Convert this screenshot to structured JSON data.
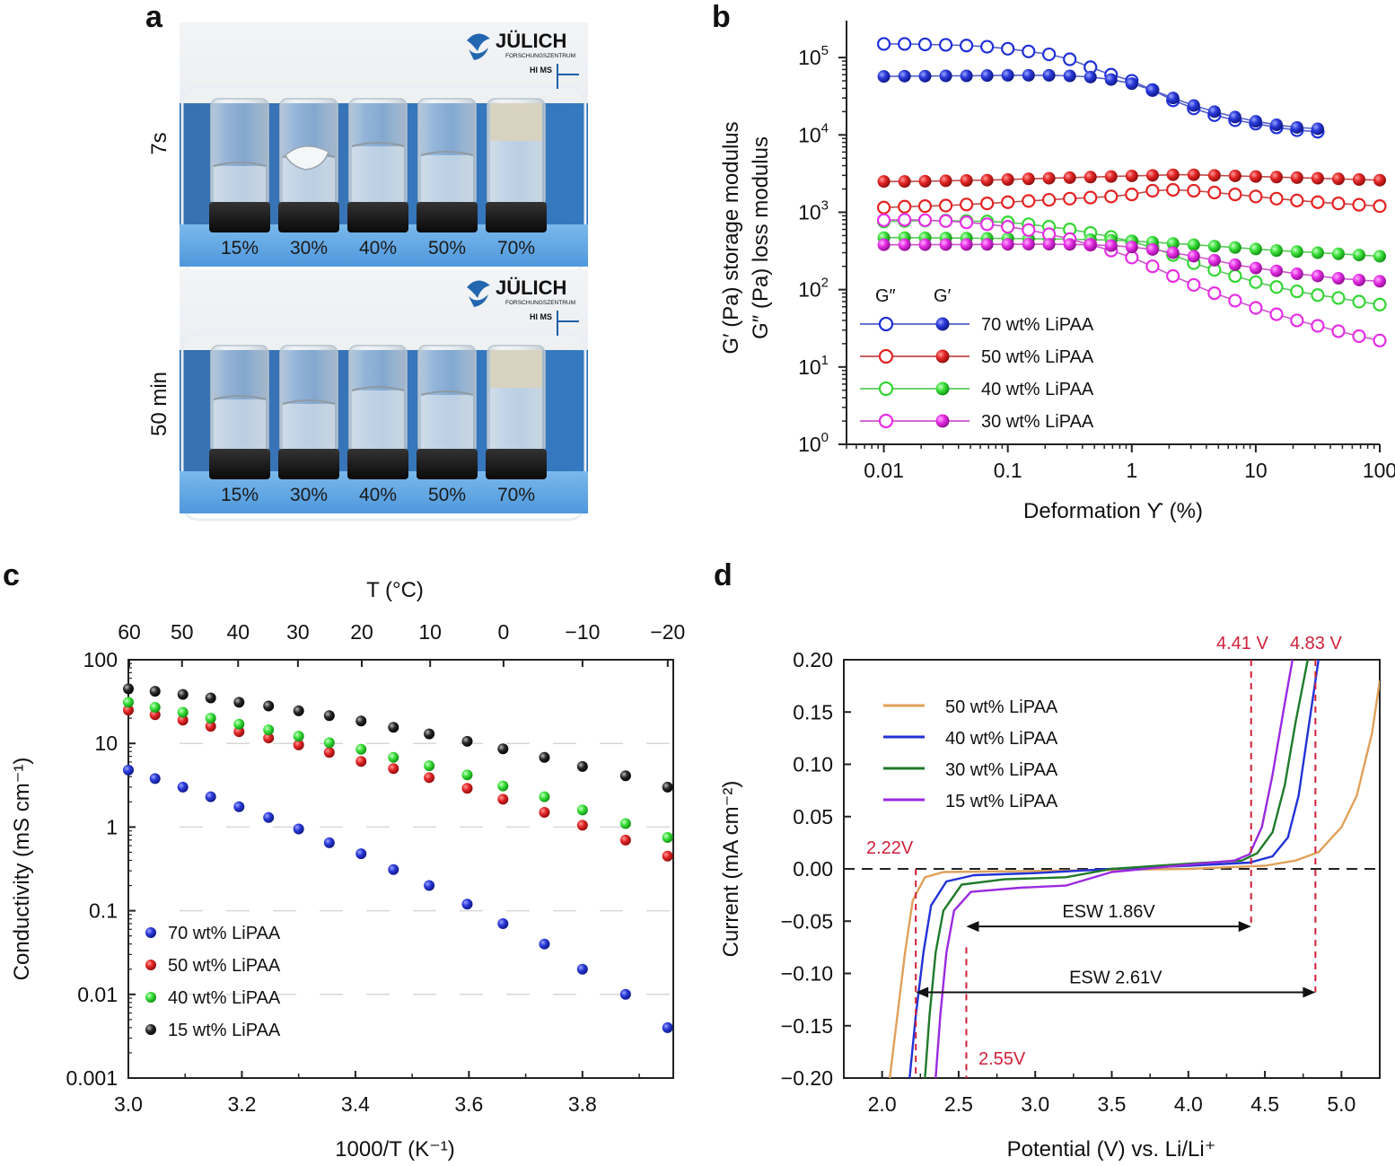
{
  "panels": {
    "a": {
      "letter": "a",
      "row_labels": [
        "7s",
        "50 min"
      ],
      "vial_labels": [
        "15%",
        "30%",
        "40%",
        "50%",
        "70%"
      ],
      "logo_text": "JÜLICH",
      "logo_subtext": "FORSCHUNGSZENTRUM",
      "badge": "HI MS"
    },
    "b": {
      "letter": "b"
    },
    "c": {
      "letter": "c"
    },
    "d": {
      "letter": "d"
    }
  },
  "chart_data": [
    {
      "panel": "b",
      "type": "scatter",
      "xscale": "log",
      "yscale": "log",
      "xlim": [
        0.005,
        100
      ],
      "ylim": [
        1,
        300000
      ],
      "xlabel": "Deformation ϒ (%)",
      "ylabel_lines": [
        "G′ (Pa) storage modulus",
        "G″ (Pa) loss modulus"
      ],
      "xticks": [
        {
          "v": 0.01,
          "label": "0.01"
        },
        {
          "v": 0.1,
          "label": "0.1"
        },
        {
          "v": 1,
          "label": "1"
        },
        {
          "v": 10,
          "label": "10"
        },
        {
          "v": 100,
          "label": "100"
        }
      ],
      "yticks": [
        {
          "exp": 0,
          "base": "10",
          "sup": "0"
        },
        {
          "exp": 1,
          "base": "10",
          "sup": "1"
        },
        {
          "exp": 2,
          "base": "10",
          "sup": "2"
        },
        {
          "exp": 3,
          "base": "10",
          "sup": "3"
        },
        {
          "exp": 4,
          "base": "10",
          "sup": "4"
        },
        {
          "exp": 5,
          "base": "10",
          "sup": "5"
        }
      ],
      "legend_headers": [
        "G″",
        "G′"
      ],
      "x": [
        0.01,
        0.0147,
        0.0215,
        0.0316,
        0.0464,
        0.0681,
        0.1,
        0.147,
        0.215,
        0.316,
        0.464,
        0.681,
        1,
        1.47,
        2.15,
        3.16,
        4.64,
        6.81,
        10,
        14.7,
        21.5,
        31.6,
        46.4,
        68.1,
        100
      ],
      "series": [
        {
          "name": "70 wt% LiPAA",
          "color": "#1e2fd9",
          "G2": [
            150000,
            150000,
            148000,
            146000,
            143000,
            138000,
            130000,
            120000,
            110000,
            95000,
            75000,
            60000,
            50000,
            38000,
            28000,
            22000,
            18000,
            15500,
            14000,
            12500,
            11500,
            11000
          ],
          "G1": [
            57000,
            57500,
            57500,
            58000,
            58000,
            58500,
            59000,
            59000,
            59000,
            58000,
            56000,
            52000,
            46000,
            38000,
            30000,
            24000,
            20000,
            17000,
            15000,
            13500,
            12500,
            12000
          ]
        },
        {
          "name": "50 wt% LiPAA",
          "color": "#e52222",
          "G2": [
            1150,
            1180,
            1200,
            1220,
            1260,
            1300,
            1350,
            1400,
            1450,
            1500,
            1550,
            1600,
            1700,
            1900,
            1950,
            1900,
            1800,
            1700,
            1600,
            1500,
            1420,
            1350,
            1300,
            1250,
            1200
          ],
          "G1": [
            2500,
            2500,
            2520,
            2550,
            2580,
            2600,
            2650,
            2700,
            2750,
            2800,
            2850,
            2900,
            2950,
            3000,
            3050,
            3050,
            3000,
            2950,
            2900,
            2850,
            2800,
            2750,
            2700,
            2650,
            2600
          ]
        },
        {
          "name": "40 wt% LiPAA",
          "color": "#33d633",
          "G2": [
            760,
            770,
            780,
            780,
            770,
            760,
            740,
            700,
            650,
            600,
            540,
            480,
            420,
            350,
            280,
            220,
            180,
            150,
            125,
            108,
            95,
            85,
            78,
            70,
            64
          ],
          "G1": [
            470,
            470,
            468,
            465,
            463,
            460,
            458,
            455,
            452,
            448,
            443,
            435,
            425,
            410,
            395,
            380,
            365,
            350,
            335,
            320,
            310,
            300,
            290,
            280,
            270
          ]
        },
        {
          "name": "30 wt% LiPAA",
          "color": "#e62ee6",
          "G2": [
            790,
            800,
            790,
            770,
            740,
            700,
            650,
            590,
            520,
            450,
            380,
            320,
            260,
            200,
            150,
            115,
            90,
            72,
            58,
            48,
            40,
            34,
            29,
            25,
            22
          ],
          "G1": [
            380,
            380,
            381,
            382,
            383,
            384,
            385,
            386,
            386,
            384,
            380,
            370,
            355,
            330,
            300,
            270,
            240,
            210,
            190,
            175,
            160,
            150,
            140,
            133,
            128
          ]
        }
      ]
    },
    {
      "panel": "c",
      "type": "scatter",
      "yscale": "log",
      "xlim": [
        3.0,
        3.96
      ],
      "ylim": [
        0.001,
        100
      ],
      "xlabel": "1000/T (K⁻¹)",
      "xlabel_top": "T (°C)",
      "ylabel": "Conductivity (mS cm⁻¹)",
      "xticks": [
        "3.0",
        "3.2",
        "3.4",
        "3.6",
        "3.8"
      ],
      "xticks_v": [
        3.0,
        3.2,
        3.4,
        3.6,
        3.8
      ],
      "yticks": [
        "100",
        "10",
        "1",
        "0.1",
        "0.01",
        "0.001"
      ],
      "yticks_v": [
        100,
        10,
        1,
        0.1,
        0.01,
        0.001
      ],
      "top_ticks": [
        "60",
        "50",
        "40",
        "30",
        "20",
        "10",
        "0",
        "−10",
        "−20"
      ],
      "top_ticks_c": [
        60,
        50,
        40,
        30,
        20,
        10,
        0,
        -10,
        -20
      ],
      "x": [
        3.0,
        3.047,
        3.096,
        3.145,
        3.195,
        3.247,
        3.3,
        3.354,
        3.41,
        3.467,
        3.53,
        3.597,
        3.66,
        3.733,
        3.8,
        3.876,
        3.95
      ],
      "series": [
        {
          "name": "70 wt% LiPAA",
          "color": "#2f36d8",
          "values": [
            4.8,
            3.8,
            3.0,
            2.3,
            1.75,
            1.3,
            0.95,
            0.65,
            0.48,
            0.31,
            0.2,
            0.12,
            0.07,
            0.04,
            0.02,
            0.01,
            0.004
          ]
        },
        {
          "name": "50 wt% LiPAA",
          "color": "#e32626",
          "values": [
            25,
            22,
            19,
            16,
            13.8,
            11.6,
            9.6,
            7.8,
            6.1,
            5.0,
            3.9,
            2.9,
            2.15,
            1.5,
            1.05,
            0.7,
            0.45
          ]
        },
        {
          "name": "40 wt% LiPAA",
          "color": "#3adf3a",
          "values": [
            31,
            27,
            23.5,
            20,
            17,
            14.5,
            12.2,
            10.2,
            8.5,
            6.8,
            5.4,
            4.2,
            3.1,
            2.3,
            1.6,
            1.1,
            0.75
          ]
        },
        {
          "name": "15 wt% LiPAA",
          "color": "#1a1a1a",
          "values": [
            45,
            42,
            38.5,
            35,
            31,
            28,
            24.5,
            21.5,
            18.5,
            15.6,
            13,
            10.6,
            8.6,
            6.8,
            5.3,
            4.1,
            3.0
          ]
        }
      ]
    },
    {
      "panel": "d",
      "type": "line",
      "xlim": [
        1.75,
        5.25
      ],
      "ylim": [
        -0.2,
        0.2
      ],
      "xlabel": "Potential (V) vs. Li/Li⁺",
      "ylabel": "Current (mA cm⁻²)",
      "xticks": [
        "2.0",
        "2.5",
        "3.0",
        "3.5",
        "4.0",
        "4.5",
        "5.0"
      ],
      "xticks_v": [
        2.0,
        2.5,
        3.0,
        3.5,
        4.0,
        4.5,
        5.0
      ],
      "yticks": [
        "0.20",
        "0.15",
        "0.10",
        "0.05",
        "0.00",
        "−0.05",
        "−0.10",
        "−0.15",
        "−0.20"
      ],
      "yticks_v": [
        0.2,
        0.15,
        0.1,
        0.05,
        0.0,
        -0.05,
        -0.1,
        -0.15,
        -0.2
      ],
      "series": [
        {
          "name": "50 wt% LiPAA",
          "color": "#e0a05a",
          "points": [
            [
              2.05,
              -0.2
            ],
            [
              2.1,
              -0.14
            ],
            [
              2.15,
              -0.08
            ],
            [
              2.2,
              -0.03
            ],
            [
              2.28,
              -0.008
            ],
            [
              2.4,
              -0.003
            ],
            [
              3.0,
              -0.002
            ],
            [
              4.0,
              0.0
            ],
            [
              4.5,
              0.003
            ],
            [
              4.7,
              0.008
            ],
            [
              4.85,
              0.016
            ],
            [
              5.0,
              0.04
            ],
            [
              5.1,
              0.07
            ],
            [
              5.2,
              0.13
            ],
            [
              5.25,
              0.18
            ]
          ]
        },
        {
          "name": "40 wt% LiPAA",
          "color": "#2232d6",
          "points": [
            [
              2.18,
              -0.2
            ],
            [
              2.22,
              -0.14
            ],
            [
              2.27,
              -0.08
            ],
            [
              2.32,
              -0.035
            ],
            [
              2.42,
              -0.012
            ],
            [
              2.6,
              -0.006
            ],
            [
              3.0,
              -0.004
            ],
            [
              3.5,
              0.0
            ],
            [
              4.0,
              0.003
            ],
            [
              4.4,
              0.006
            ],
            [
              4.55,
              0.012
            ],
            [
              4.65,
              0.03
            ],
            [
              4.72,
              0.07
            ],
            [
              4.78,
              0.13
            ],
            [
              4.85,
              0.2
            ]
          ]
        },
        {
          "name": "30 wt% LiPAA",
          "color": "#207a2a",
          "points": [
            [
              2.28,
              -0.2
            ],
            [
              2.31,
              -0.14
            ],
            [
              2.35,
              -0.08
            ],
            [
              2.4,
              -0.04
            ],
            [
              2.52,
              -0.015
            ],
            [
              2.8,
              -0.01
            ],
            [
              3.2,
              -0.008
            ],
            [
              3.5,
              0.0
            ],
            [
              4.0,
              0.005
            ],
            [
              4.35,
              0.008
            ],
            [
              4.45,
              0.015
            ],
            [
              4.55,
              0.035
            ],
            [
              4.63,
              0.08
            ],
            [
              4.7,
              0.14
            ],
            [
              4.78,
              0.2
            ]
          ]
        },
        {
          "name": "15 wt% LiPAA",
          "color": "#9a2ae0",
          "points": [
            [
              2.35,
              -0.2
            ],
            [
              2.38,
              -0.14
            ],
            [
              2.42,
              -0.08
            ],
            [
              2.47,
              -0.04
            ],
            [
              2.58,
              -0.022
            ],
            [
              2.9,
              -0.018
            ],
            [
              3.2,
              -0.016
            ],
            [
              3.5,
              -0.003
            ],
            [
              4.0,
              0.004
            ],
            [
              4.3,
              0.008
            ],
            [
              4.4,
              0.014
            ],
            [
              4.48,
              0.04
            ],
            [
              4.55,
              0.09
            ],
            [
              4.62,
              0.15
            ],
            [
              4.68,
              0.2
            ]
          ]
        }
      ],
      "annotations": [
        {
          "text": "2.22V",
          "x": 2.22
        },
        {
          "text": "2.55V",
          "x": 2.55
        },
        {
          "text": "4.41 V",
          "x": 4.41
        },
        {
          "text": "4.83 V",
          "x": 4.83
        },
        {
          "text": "ESW 1.86V",
          "from": 2.55,
          "to": 4.41,
          "y": -0.055
        },
        {
          "text": "ESW 2.61V",
          "from": 2.22,
          "to": 4.83,
          "y": -0.118
        }
      ]
    }
  ]
}
